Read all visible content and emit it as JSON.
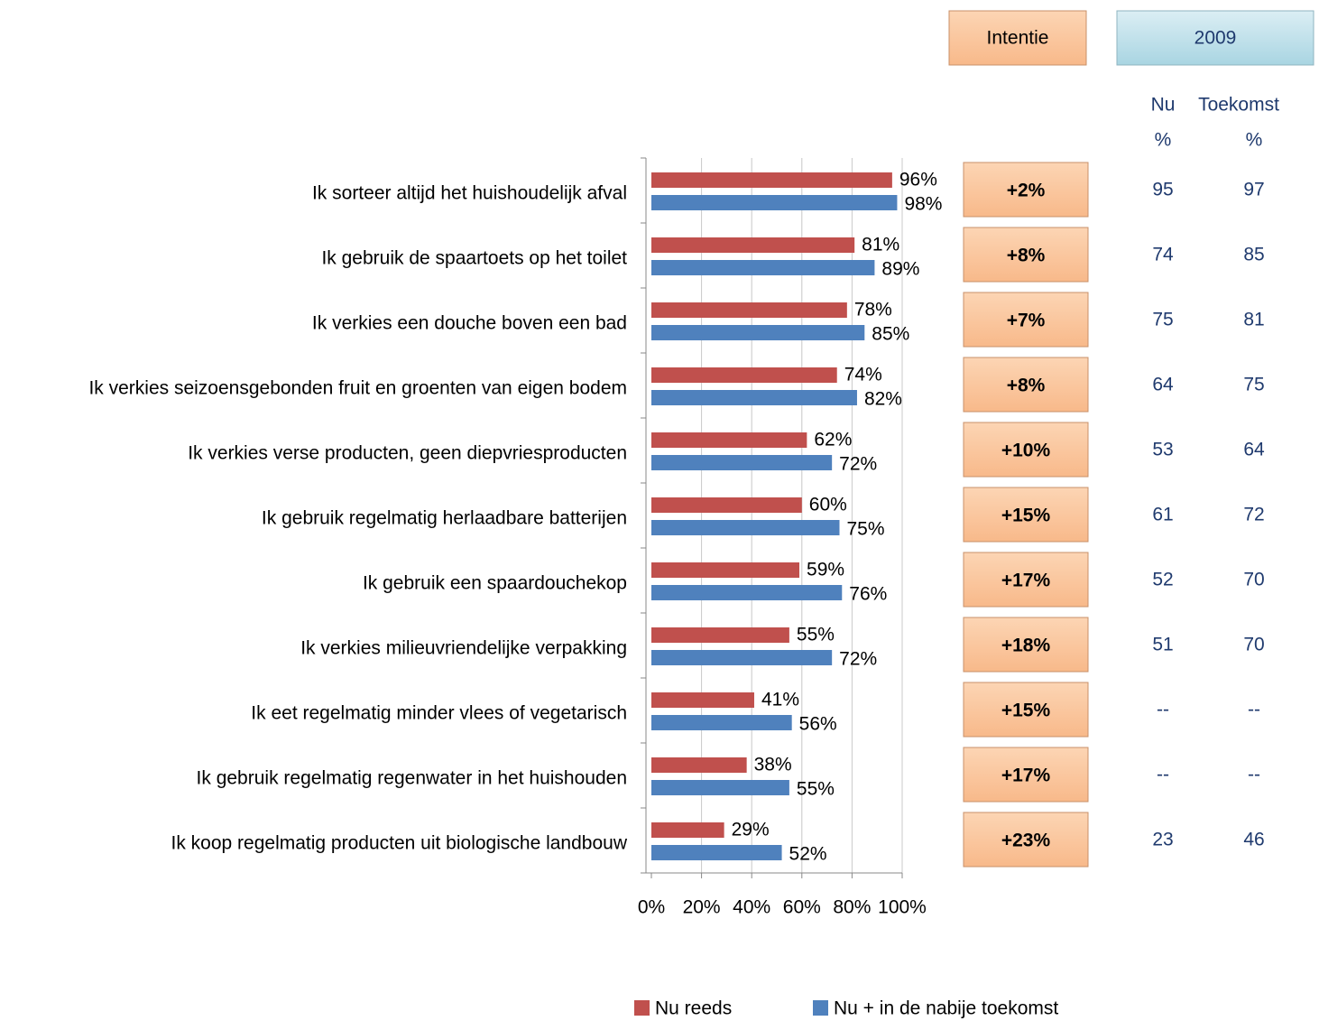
{
  "chart_data": {
    "type": "bar",
    "orientation": "horizontal",
    "categories": [
      "Ik sorteer altijd het huishoudelijk afval",
      "Ik gebruik de spaartoets op het toilet",
      "Ik verkies een douche boven een bad",
      "Ik verkies seizoensgebonden fruit en groenten van eigen bodem",
      "Ik verkies verse producten, geen diepvriesproducten",
      "Ik gebruik regelmatig herlaadbare batterijen",
      "Ik gebruik een spaardouchekop",
      "Ik verkies milieuvriendelijke verpakking",
      "Ik eet regelmatig minder vlees of vegetarisch",
      "Ik gebruik regelmatig regenwater in het huishouden",
      "Ik koop regelmatig producten uit biologische landbouw"
    ],
    "series": [
      {
        "name": "Nu reeds",
        "color": "#c0504d",
        "values": [
          96,
          81,
          78,
          74,
          62,
          60,
          59,
          55,
          41,
          38,
          29
        ],
        "value_labels": [
          "96%",
          "81%",
          "78%",
          "74%",
          "62%",
          "60%",
          "59%",
          "55%",
          "41%",
          "38%",
          "29%"
        ]
      },
      {
        "name": "Nu + in de nabije toekomst",
        "color": "#4f81bd",
        "values": [
          98,
          89,
          85,
          82,
          72,
          75,
          76,
          72,
          56,
          55,
          52
        ],
        "value_labels": [
          "98%",
          "89%",
          "85%",
          "82%",
          "72%",
          "75%",
          "76%",
          "72%",
          "56%",
          "55%",
          "52%"
        ]
      }
    ],
    "xlim": [
      0,
      100
    ],
    "xticks": [
      {
        "value": 0,
        "label": "0%"
      },
      {
        "value": 20,
        "label": "20%"
      },
      {
        "value": 40,
        "label": "40%"
      },
      {
        "value": 60,
        "label": "60%"
      },
      {
        "value": 80,
        "label": "80%"
      },
      {
        "value": 100,
        "label": "100%"
      }
    ],
    "grid": true,
    "legend": "bottom"
  },
  "intention": {
    "title": "Intentie",
    "values": [
      "+2%",
      "+8%",
      "+7%",
      "+8%",
      "+10%",
      "+15%",
      "+17%",
      "+18%",
      "+15%",
      "+17%",
      "+23%"
    ]
  },
  "table_2009": {
    "title": "2009",
    "columns": [
      {
        "name": "Nu",
        "unit": "%"
      },
      {
        "name": "Toekomst",
        "unit": "%"
      }
    ],
    "rows": [
      [
        95,
        97
      ],
      [
        74,
        85
      ],
      [
        75,
        81
      ],
      [
        64,
        75
      ],
      [
        53,
        64
      ],
      [
        61,
        72
      ],
      [
        52,
        70
      ],
      [
        51,
        70
      ],
      [
        "--",
        "--"
      ],
      [
        "--",
        "--"
      ],
      [
        23,
        46
      ]
    ]
  }
}
